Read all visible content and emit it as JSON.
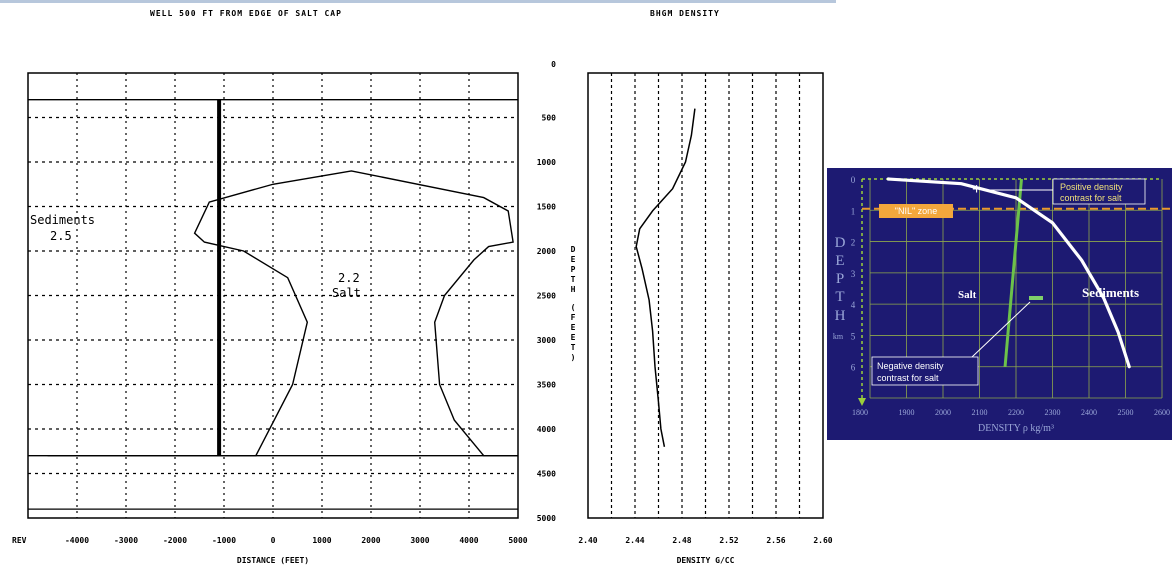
{
  "headings": {
    "left_title": "WELL 500 FT  FROM EDGE OF SALT CAP",
    "mid_title": "BHGM DENSITY"
  },
  "chart_data": [
    {
      "type": "line",
      "name": "cross-section",
      "x_ticks": [
        "REV",
        "-4000",
        "-3000",
        "-2000",
        "-1000",
        "0",
        "1000",
        "2000",
        "3000",
        "4000",
        "5000"
      ],
      "y_ticks": [
        "0",
        "500",
        "1000",
        "1500",
        "2000",
        "2500",
        "3000",
        "3500",
        "4000",
        "4500",
        "5000"
      ],
      "xlabel": "DISTANCE (FEET)",
      "ylabel": "DEPTH (FEET)",
      "xlim": [
        -5000,
        5000
      ],
      "ylim": [
        0,
        5000
      ],
      "grid": true,
      "annotations": [
        "Sediments",
        "2.5",
        "2.2",
        "Salt"
      ],
      "horizontal_lines": [
        300,
        4300,
        4900
      ],
      "well": {
        "x": -1100,
        "depth_top": 300,
        "depth_bottom": 4300
      },
      "salt_outline": [
        [
          -4600,
          4300
        ],
        [
          -350,
          4300
        ],
        [
          400,
          3500
        ],
        [
          700,
          2800
        ],
        [
          300,
          2300
        ],
        [
          -600,
          2000
        ],
        [
          -1400,
          1900
        ],
        [
          -1600,
          1800
        ],
        [
          -1300,
          1450
        ],
        [
          0,
          1250
        ],
        [
          1600,
          1100
        ],
        [
          4300,
          1400
        ],
        [
          4800,
          1550
        ],
        [
          4900,
          1900
        ],
        [
          4400,
          1950
        ],
        [
          4100,
          2100
        ],
        [
          3500,
          2500
        ],
        [
          3300,
          2800
        ],
        [
          3400,
          3500
        ],
        [
          3700,
          3900
        ],
        [
          4300,
          4300
        ],
        [
          5000,
          4300
        ]
      ]
    },
    {
      "type": "line",
      "name": "density-log",
      "x_ticks": [
        "2.40",
        "2.44",
        "2.48",
        "2.52",
        "2.56",
        "2.60"
      ],
      "xlabel": "DENSITY G/CC",
      "xlim": [
        2.4,
        2.6
      ],
      "ylim": [
        0,
        5000
      ],
      "grid": true,
      "series": [
        {
          "points": [
            [
              2.491,
              400
            ],
            [
              2.488,
              700
            ],
            [
              2.483,
              1000
            ],
            [
              2.472,
              1300
            ],
            [
              2.455,
              1550
            ],
            [
              2.444,
              1750
            ],
            [
              2.441,
              1950
            ],
            [
              2.446,
              2200
            ],
            [
              2.452,
              2550
            ],
            [
              2.455,
              2900
            ],
            [
              2.457,
              3300
            ],
            [
              2.46,
              3700
            ],
            [
              2.462,
              4000
            ],
            [
              2.465,
              4200
            ]
          ]
        }
      ]
    },
    {
      "type": "line",
      "name": "density-vs-depth",
      "x": [
        1800,
        1900,
        2000,
        2100,
        2200,
        2300,
        2400,
        2500,
        2600
      ],
      "y_ticks": [
        "0",
        "1",
        "2",
        "3",
        "4",
        "5",
        "6"
      ],
      "xlabel": "DENSITY ρ  kg/m³",
      "ylabel": [
        "D",
        "E",
        "P",
        "T",
        "H",
        "km"
      ],
      "xlim": [
        1800,
        2600
      ],
      "ylim": [
        0,
        7
      ],
      "background": "#1d1a72",
      "grid_color": "#8ea84b",
      "series": [
        {
          "name": "Sediments",
          "color": "#ffffff",
          "points": [
            [
              1850,
              0
            ],
            [
              2050,
              0.15
            ],
            [
              2200,
              0.6
            ],
            [
              2300,
              1.4
            ],
            [
              2380,
              2.6
            ],
            [
              2440,
              3.8
            ],
            [
              2480,
              4.9
            ],
            [
              2510,
              6.0
            ]
          ]
        },
        {
          "name": "Salt",
          "color": "#6cc24a",
          "points": [
            [
              2215,
              0
            ],
            [
              2170,
              6.0
            ]
          ]
        }
      ],
      "nil_zone_depth": 0.95,
      "annotations": {
        "nil_zone": "\"NIL\" zone",
        "positive": [
          "Positive density",
          "contrast for salt"
        ],
        "negative": [
          "Negative density",
          "contrast for salt"
        ],
        "plus": "+",
        "minus": "−"
      }
    }
  ]
}
